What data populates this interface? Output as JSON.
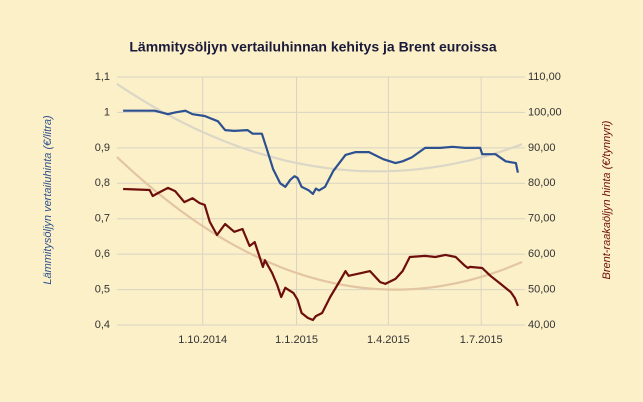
{
  "chart_data": {
    "type": "line",
    "title": "Lämmitysöljyn vertailuhinnan kehitys ja Brent euroissa",
    "y_label": "Lämmitysöljyn vertailuhinta (€/litra)",
    "y2_label": "Brent-raakaöljyn hinta (€/tynnyri)",
    "xlim": [
      "2014-07-09",
      "2015-08-10"
    ],
    "xticks": [
      {
        "value": "2014-10-01",
        "label": "1.10.2014"
      },
      {
        "value": "2015-01-01",
        "label": "1.1.2015"
      },
      {
        "value": "2015-04-01",
        "label": "1.4.2015"
      },
      {
        "value": "2015-07-01",
        "label": "1.7.2015"
      }
    ],
    "ylim": [
      0.4,
      1.1
    ],
    "yticks": [
      {
        "value": 0.4,
        "label": "0,4"
      },
      {
        "value": 0.5,
        "label": "0,5"
      },
      {
        "value": 0.6,
        "label": "0,6"
      },
      {
        "value": 0.7,
        "label": "0,7"
      },
      {
        "value": 0.8,
        "label": "0,8"
      },
      {
        "value": 0.9,
        "label": "0,9"
      },
      {
        "value": 1,
        "label": "1"
      },
      {
        "value": 1.1,
        "label": "1,1"
      }
    ],
    "y2lim": [
      40,
      110
    ],
    "y2ticks": [
      {
        "value": 40,
        "label": "40,00"
      },
      {
        "value": 50,
        "label": "50,00"
      },
      {
        "value": 60,
        "label": "60,00"
      },
      {
        "value": 70,
        "label": "70,00"
      },
      {
        "value": 80,
        "label": "80,00"
      },
      {
        "value": 90,
        "label": "90,00"
      },
      {
        "value": 100,
        "label": "100,00"
      },
      {
        "value": 110,
        "label": "110,00"
      }
    ],
    "grid": true,
    "series": [
      {
        "color": "#2d5190",
        "trendline": {
          "type": "polynomial",
          "order": 2,
          "color": "#dcd6c6"
        },
        "x": [
          "2014-07-15",
          "2014-08-15",
          "2014-08-28",
          "2014-09-04",
          "2014-09-14",
          "2014-09-21",
          "2014-10-03",
          "2014-10-16",
          "2014-10-23",
          "2014-11-01",
          "2014-11-14",
          "2014-11-19",
          "2014-11-28",
          "2014-12-03",
          "2014-12-09",
          "2014-12-16",
          "2014-12-21",
          "2014-12-26",
          "2014-12-30",
          "2015-01-02",
          "2015-01-06",
          "2015-01-13",
          "2015-01-17",
          "2015-01-20",
          "2015-01-23",
          "2015-01-29",
          "2015-02-06",
          "2015-02-18",
          "2015-02-28",
          "2015-03-13",
          "2015-03-27",
          "2015-04-08",
          "2015-04-15",
          "2015-04-24",
          "2015-05-07",
          "2015-05-22",
          "2015-06-03",
          "2015-06-15",
          "2015-06-30",
          "2015-07-02",
          "2015-07-15",
          "2015-07-25",
          "2015-08-04",
          "2015-08-06"
        ],
        "values": [
          1.005,
          1.005,
          0.995,
          1.0,
          1.005,
          0.995,
          0.99,
          0.975,
          0.95,
          0.948,
          0.95,
          0.94,
          0.94,
          0.895,
          0.84,
          0.8,
          0.79,
          0.81,
          0.82,
          0.815,
          0.79,
          0.78,
          0.77,
          0.785,
          0.78,
          0.79,
          0.835,
          0.88,
          0.888,
          0.888,
          0.868,
          0.857,
          0.862,
          0.873,
          0.9,
          0.9,
          0.903,
          0.9,
          0.9,
          0.882,
          0.882,
          0.862,
          0.857,
          0.83
        ]
      },
      {
        "color": "#6e0e0a",
        "axis": "y2",
        "trendline": {
          "type": "polynomial",
          "order": 2,
          "color": "#e3c5a2"
        },
        "x": [
          "2014-07-15",
          "2014-08-10",
          "2014-08-13",
          "2014-08-20",
          "2014-08-28",
          "2014-09-04",
          "2014-09-13",
          "2014-09-21",
          "2014-09-28",
          "2014-10-03",
          "2014-10-08",
          "2014-10-15",
          "2014-10-23",
          "2014-11-01",
          "2014-11-09",
          "2014-11-16",
          "2014-11-21",
          "2014-11-29",
          "2014-12-01",
          "2014-12-08",
          "2014-12-13",
          "2014-12-17",
          "2014-12-21",
          "2014-12-29",
          "2015-01-02",
          "2015-01-06",
          "2015-01-12",
          "2015-01-17",
          "2015-01-20",
          "2015-01-26",
          "2015-02-03",
          "2015-02-13",
          "2015-02-18",
          "2015-02-21",
          "2015-03-06",
          "2015-03-14",
          "2015-03-24",
          "2015-03-29",
          "2015-04-08",
          "2015-04-15",
          "2015-04-22",
          "2015-05-07",
          "2015-05-17",
          "2015-05-27",
          "2015-06-06",
          "2015-06-15",
          "2015-06-18",
          "2015-06-20",
          "2015-07-02",
          "2015-07-10",
          "2015-07-20",
          "2015-07-30",
          "2015-08-03",
          "2015-08-06"
        ],
        "values": [
          78.4,
          78.1,
          76.4,
          77.5,
          78.7,
          77.8,
          74.7,
          75.8,
          74.4,
          73.9,
          69.1,
          65.4,
          68.5,
          66.3,
          67.1,
          62.3,
          63.4,
          56.4,
          58.3,
          54.7,
          51.3,
          47.9,
          50.5,
          49.0,
          47.1,
          43.4,
          42.0,
          41.4,
          42.5,
          43.4,
          47.9,
          52.7,
          55.2,
          53.9,
          54.7,
          55.2,
          52.1,
          51.6,
          53.0,
          55.2,
          59.2,
          59.5,
          59.2,
          59.8,
          59.2,
          56.7,
          56.1,
          56.4,
          56.1,
          53.9,
          51.6,
          49.3,
          47.6,
          45.4
        ]
      }
    ]
  }
}
